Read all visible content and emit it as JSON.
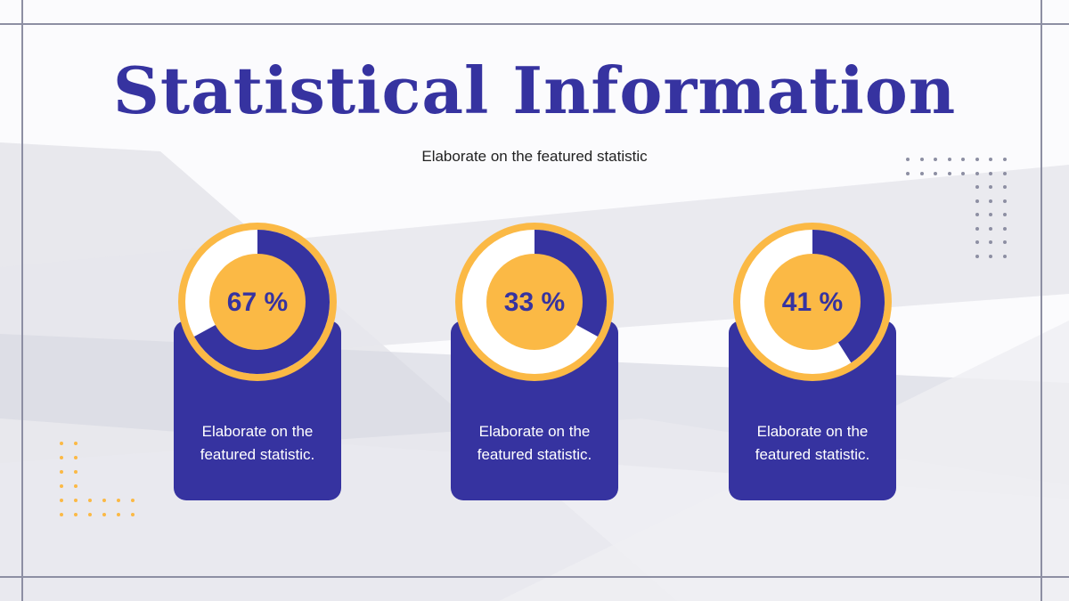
{
  "title": "Statistical Information",
  "subtitle": "Elaborate on the featured statistic",
  "colors": {
    "primary": "#3633a0",
    "accent": "#fbb945",
    "ring_background": "#ffffff",
    "frame": "#8d8fa3",
    "shape_gray": "#e3e3ea"
  },
  "chart_data": [
    {
      "type": "pie",
      "label": "67 %",
      "value": 67,
      "unit": "%",
      "description": "Elaborate on the featured statistic."
    },
    {
      "type": "pie",
      "label": "33 %",
      "value": 33,
      "unit": "%",
      "description": "Elaborate on the featured statistic."
    },
    {
      "type": "pie",
      "label": "41 %",
      "value": 41,
      "unit": "%",
      "description": "Elaborate on the featured statistic."
    }
  ]
}
